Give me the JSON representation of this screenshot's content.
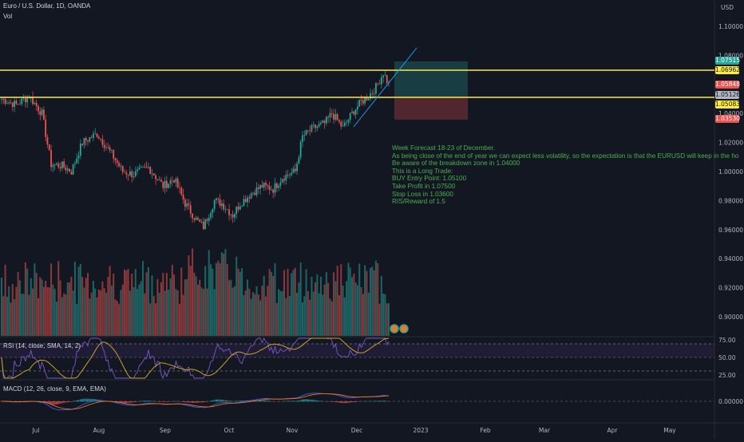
{
  "header": {
    "symbol": "Euro / U.S. Dollar, 1D, OANDA",
    "volume_label": "Vol",
    "currency": "USD"
  },
  "price_tags": [
    {
      "text": "1.07515",
      "bg": "#26a69a",
      "fg": "#ffffff",
      "price": 1.07515
    },
    {
      "text": "1.06962",
      "bg": "#ffeb3b",
      "fg": "#131722",
      "price": 1.06962
    },
    {
      "text": "1.05848",
      "bg": "#ef5350",
      "fg": "#ffffff",
      "price": 1.05848
    },
    {
      "text": "1.05126",
      "bg": "#b2b5be",
      "fg": "#131722",
      "price": 1.05126
    },
    {
      "text": "1.05083",
      "bg": "#ffeb3b",
      "fg": "#131722",
      "price": 1.05083
    },
    {
      "text": "1.03530",
      "bg": "#ef5350",
      "fg": "#ffffff",
      "price": 1.0353
    }
  ],
  "note": {
    "lines": [
      "Week Forecast 18-23 of December.",
      "As being close of the end of year we can expect less volatility, so the expectation is that the EURUSD will keep in the ho",
      "Be aware of the breakdown zone in 1.04000",
      "This is a Long Trade:",
      "BUY Entry Point: 1.05100",
      "Take Profit in 1.07500",
      "Stop Loss in 1.03600",
      "RIS/Reward of 1.5"
    ]
  },
  "rsi": {
    "label": "RSI (14, close, SMA, 14, 2)",
    "ticks": [
      "75.00",
      "50.00",
      "25.00"
    ]
  },
  "macd": {
    "label": "MACD (12, 26, close, 9, EMA, EMA)",
    "ticks": [
      "0.00000"
    ]
  },
  "colors": {
    "up": "#26a69a",
    "down": "#ef5350",
    "level_line": "#ffeb3b",
    "trendline": "#2196f3",
    "rsi_line": "#7e57c2",
    "rsi_ma": "#c9a227",
    "macd_line": "#2962ff",
    "signal_line": "#ff6d00"
  },
  "chart_data": {
    "type": "candlestick",
    "symbol": "EURUSD",
    "timeframe": "1D",
    "x_labels": [
      "Jul",
      "Aug",
      "Sep",
      "Oct",
      "Nov",
      "Dec",
      "2023",
      "Feb",
      "Mar",
      "Apr",
      "May"
    ],
    "y_ticks": [
      "1.10000",
      "1.08000",
      "1.04000",
      "1.02000",
      "1.00000",
      "0.98000",
      "0.96000",
      "0.94000",
      "0.92000",
      "0.90000"
    ],
    "ylim": [
      0.885,
      1.112
    ],
    "levels": [
      1.06962,
      1.05083
    ],
    "trendline": {
      "from": [
        0.0,
        1.03
      ],
      "to": [
        1.0,
        1.086
      ],
      "x_range_note": "early Dec to mid Dec"
    },
    "position": {
      "entry": 1.051,
      "take_profit": 1.075,
      "stop_loss": 1.036
    },
    "swing_points": [
      {
        "label": "late Jun",
        "close": 1.052
      },
      {
        "label": "mid Jul low",
        "close": 1.0
      },
      {
        "label": "early Aug",
        "close": 1.025
      },
      {
        "label": "late Aug",
        "close": 0.995
      },
      {
        "label": "mid Sep",
        "close": 1.002
      },
      {
        "label": "late Sep low",
        "close": 0.96
      },
      {
        "label": "early Oct",
        "close": 0.985
      },
      {
        "label": "mid Oct",
        "close": 0.97
      },
      {
        "label": "late Oct",
        "close": 0.998
      },
      {
        "label": "mid Nov",
        "close": 1.035
      },
      {
        "label": "late Nov",
        "close": 1.04
      },
      {
        "label": "mid Dec high",
        "close": 1.066
      }
    ]
  }
}
